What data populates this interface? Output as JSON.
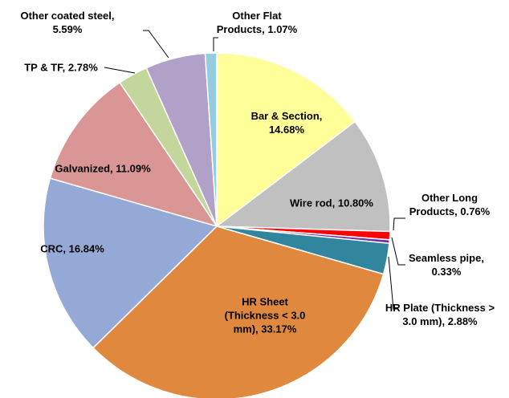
{
  "chart_data": {
    "type": "pie",
    "categories": [
      "Bar & Section,",
      "Wire rod,",
      "Other Long Products,",
      "Seamless pipe,",
      "HR Plate (Thickness > 3.0 mm),",
      "HR Sheet (Thickness < 3.0 mm),",
      "CRC,",
      "Galvanized,",
      "TP & TF,",
      "Other coated steel,",
      "Other Flat Products,"
    ],
    "values": [
      14.68,
      10.8,
      0.76,
      0.33,
      2.88,
      33.17,
      16.84,
      11.09,
      2.78,
      5.59,
      1.07
    ],
    "value_labels": [
      "14.68%",
      "10.80%",
      "0.76%",
      "0.33%",
      "2.88%",
      "33.17%",
      "16.84%",
      "11.09%",
      "2.78%",
      "5.59%",
      "1.07%"
    ],
    "colors": [
      "#ffff99",
      "#c0c0c0",
      "#ff0000",
      "#7030a0",
      "#31859c",
      "#e0883e",
      "#95a9d6",
      "#d99694",
      "#c3d69b",
      "#b1a0c7",
      "#93cddd"
    ]
  }
}
